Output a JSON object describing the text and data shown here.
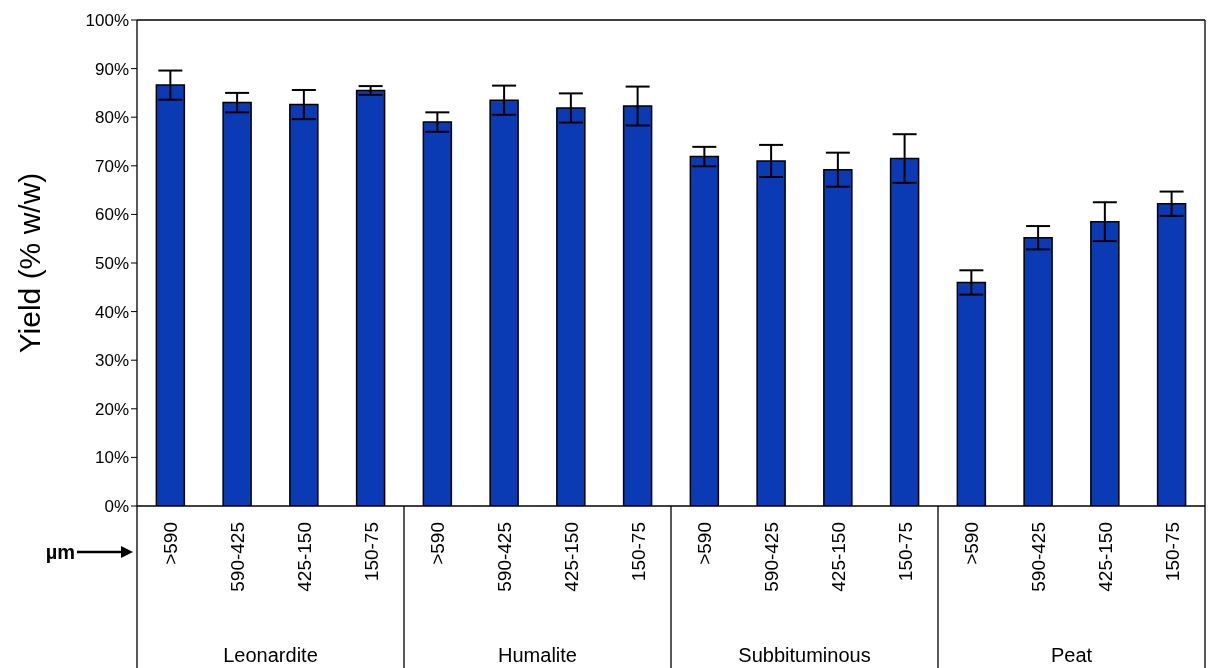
{
  "chart_data": {
    "type": "bar",
    "ylabel": "Yield (% w/w)",
    "xlabel": "µm",
    "categories": [
      ">590",
      "590-425",
      "425-150",
      "150-75",
      ">590",
      "590-425",
      "425-150",
      "150-75",
      ">590",
      "590-425",
      "425-150",
      "150-75",
      ">590",
      "590-425",
      "425-150",
      "150-75"
    ],
    "annotations": [
      "Leonardite",
      "Humalite",
      "Subbituminous",
      "Peat"
    ],
    "values": [
      86.6,
      83.0,
      82.6,
      85.5,
      79.0,
      83.5,
      81.9,
      82.3,
      71.9,
      71.0,
      69.2,
      71.5,
      46.0,
      55.2,
      58.5,
      62.2
    ],
    "errors": [
      3,
      2,
      3,
      0.9,
      2,
      3,
      3,
      4,
      2,
      3.3,
      3.5,
      5,
      2.5,
      2.4,
      4,
      2.5
    ],
    "color": "#0a3bb5",
    "ylim": [
      0,
      100
    ],
    "yticks": [
      {
        "value": 0,
        "label": "0%"
      },
      {
        "value": 10,
        "label": "10%"
      },
      {
        "value": 20,
        "label": "20%"
      },
      {
        "value": 30,
        "label": "30%"
      },
      {
        "value": 40,
        "label": "40%"
      },
      {
        "value": 50,
        "label": "50%"
      },
      {
        "value": 60,
        "label": "60%"
      },
      {
        "value": 70,
        "label": "70%"
      },
      {
        "value": 80,
        "label": "80%"
      },
      {
        "value": 90,
        "label": "90%"
      },
      {
        "value": 100,
        "label": "100%"
      }
    ],
    "grid": false,
    "legend": false
  }
}
